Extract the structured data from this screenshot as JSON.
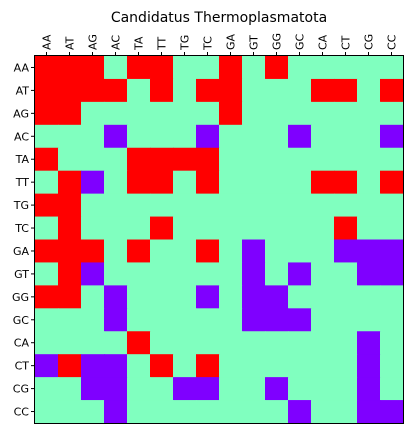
{
  "chart_data": {
    "type": "heatmap",
    "title": "Candidatus Thermoplasmatota",
    "x_labels": [
      "AA",
      "AT",
      "AG",
      "AC",
      "TA",
      "TT",
      "TG",
      "TC",
      "GA",
      "GT",
      "GG",
      "GC",
      "CA",
      "CT",
      "CG",
      "CC"
    ],
    "y_labels": [
      "AA",
      "AT",
      "AG",
      "AC",
      "TA",
      "TT",
      "TG",
      "TC",
      "GA",
      "GT",
      "GG",
      "GC",
      "CA",
      "CT",
      "CG",
      "CC"
    ],
    "x_tick_position": "top",
    "values": [
      [
        2,
        2,
        2,
        1,
        2,
        2,
        1,
        1,
        2,
        1,
        2,
        1,
        1,
        1,
        1,
        1
      ],
      [
        2,
        2,
        2,
        2,
        1,
        2,
        1,
        2,
        2,
        1,
        1,
        1,
        2,
        2,
        1,
        2
      ],
      [
        2,
        2,
        1,
        1,
        1,
        1,
        1,
        1,
        2,
        1,
        1,
        1,
        1,
        1,
        1,
        1
      ],
      [
        1,
        1,
        1,
        0,
        1,
        1,
        1,
        0,
        1,
        1,
        1,
        0,
        1,
        1,
        1,
        0
      ],
      [
        2,
        1,
        1,
        1,
        2,
        2,
        2,
        2,
        1,
        1,
        1,
        1,
        1,
        1,
        1,
        1
      ],
      [
        1,
        2,
        0,
        1,
        2,
        2,
        1,
        2,
        1,
        1,
        1,
        1,
        2,
        2,
        1,
        2
      ],
      [
        2,
        2,
        1,
        1,
        1,
        1,
        1,
        1,
        1,
        1,
        1,
        1,
        1,
        1,
        1,
        1
      ],
      [
        1,
        2,
        1,
        1,
        1,
        2,
        1,
        1,
        1,
        1,
        1,
        1,
        1,
        2,
        1,
        1
      ],
      [
        2,
        2,
        2,
        1,
        2,
        1,
        1,
        2,
        1,
        0,
        1,
        1,
        1,
        0,
        0,
        0
      ],
      [
        1,
        2,
        0,
        1,
        1,
        1,
        1,
        1,
        1,
        0,
        1,
        0,
        1,
        1,
        0,
        0
      ],
      [
        2,
        2,
        1,
        0,
        1,
        1,
        1,
        0,
        1,
        0,
        0,
        1,
        1,
        1,
        1,
        1
      ],
      [
        1,
        1,
        1,
        0,
        1,
        1,
        1,
        1,
        1,
        0,
        0,
        0,
        1,
        1,
        1,
        1
      ],
      [
        1,
        1,
        1,
        1,
        2,
        1,
        1,
        1,
        1,
        1,
        1,
        1,
        1,
        1,
        0,
        1
      ],
      [
        0,
        2,
        0,
        0,
        1,
        2,
        1,
        2,
        1,
        1,
        1,
        1,
        1,
        1,
        0,
        1
      ],
      [
        1,
        1,
        0,
        0,
        1,
        1,
        0,
        0,
        1,
        1,
        0,
        1,
        1,
        1,
        0,
        1
      ],
      [
        1,
        1,
        1,
        0,
        1,
        1,
        1,
        1,
        1,
        1,
        1,
        0,
        1,
        1,
        0,
        0
      ]
    ],
    "colors": {
      "0": "#7f00ff",
      "1": "#80ffbf",
      "2": "#ff0000"
    },
    "grid": false,
    "legend": "none"
  }
}
